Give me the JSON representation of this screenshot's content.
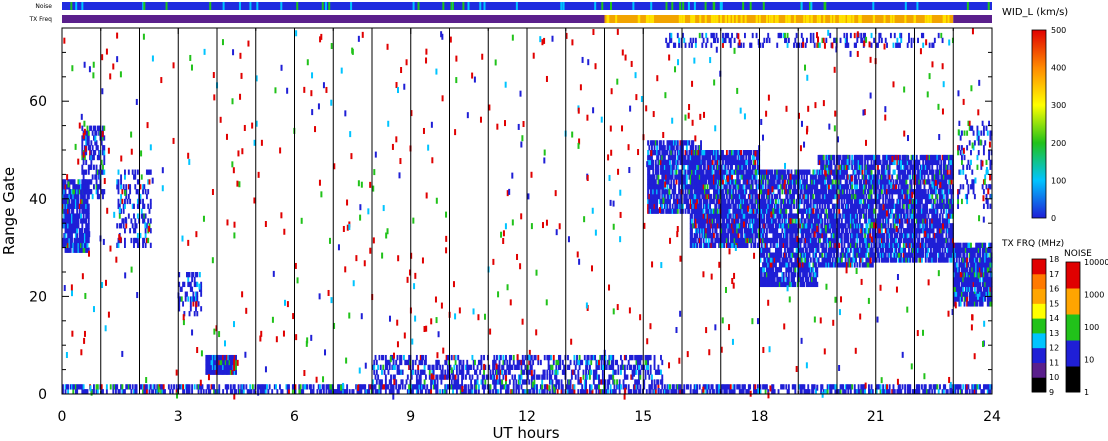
{
  "chart_data": {
    "type": "heatmap",
    "xlabel": "UT hours",
    "ylabel": "Range Gate",
    "xlim": [
      0,
      24
    ],
    "ylim": [
      0,
      75
    ],
    "x_ticks": [
      "0",
      "3",
      "6",
      "9",
      "12",
      "15",
      "18",
      "21",
      "24"
    ],
    "y_ticks": [
      "0",
      "20",
      "40",
      "60"
    ],
    "top_strips": {
      "noise_label": "Noise",
      "txfreq_label": "TX Freq",
      "txfreq_segments": [
        {
          "from": 0,
          "to": 14,
          "color": "#5a1f8c"
        },
        {
          "from": 14,
          "to": 23,
          "color": "#f2a400"
        },
        {
          "from": 23,
          "to": 24,
          "color": "#5a1f8c"
        }
      ],
      "noise_color": "#1f2bdf"
    },
    "colorbars": [
      {
        "title": "WID_L (km/s)",
        "ticks": [
          "0",
          "100",
          "200",
          "300",
          "400",
          "500"
        ],
        "colors": [
          "#1f1fd6",
          "#00c4ff",
          "#21c21a",
          "#ffff00",
          "#ff8a00",
          "#e00000"
        ]
      },
      {
        "title": "TX FRQ (MHz)",
        "ticks": [
          "9",
          "10",
          "11",
          "12",
          "13",
          "14",
          "15",
          "16",
          "17",
          "18"
        ],
        "colors": [
          "#000000",
          "#5a1f8c",
          "#1f1fd6",
          "#00c4ff",
          "#21c21a",
          "#ffff00",
          "#ffa500",
          "#ff7a00",
          "#e00000"
        ]
      },
      {
        "title": "NOISE",
        "ticks": [
          "1",
          "10",
          "100",
          "1000",
          "10000"
        ],
        "colors": [
          "#000000",
          "#1f1fd6",
          "#21c21a",
          "#ffa500",
          "#e00000"
        ]
      }
    ],
    "echo_regions": [
      {
        "t": [
          0.0,
          0.7
        ],
        "g": [
          29,
          44
        ],
        "density": 0.85
      },
      {
        "t": [
          0.5,
          1.1
        ],
        "g": [
          40,
          55
        ],
        "density": 0.5
      },
      {
        "t": [
          1.4,
          2.3
        ],
        "g": [
          30,
          46
        ],
        "density": 0.3
      },
      {
        "t": [
          3.0,
          3.6
        ],
        "g": [
          16,
          25
        ],
        "density": 0.4
      },
      {
        "t": [
          3.7,
          4.5
        ],
        "g": [
          4,
          8
        ],
        "density": 1.0
      },
      {
        "t": [
          0.0,
          24.0
        ],
        "g": [
          0,
          2
        ],
        "density": 0.6
      },
      {
        "t": [
          8.0,
          15.5
        ],
        "g": [
          2,
          8
        ],
        "density": 0.45
      },
      {
        "t": [
          15.1,
          16.5
        ],
        "g": [
          37,
          52
        ],
        "density": 0.75
      },
      {
        "t": [
          16.2,
          18.0
        ],
        "g": [
          30,
          50
        ],
        "density": 0.85
      },
      {
        "t": [
          18.0,
          19.5
        ],
        "g": [
          22,
          46
        ],
        "density": 0.8
      },
      {
        "t": [
          19.5,
          21.0
        ],
        "g": [
          26,
          49
        ],
        "density": 0.8
      },
      {
        "t": [
          21.0,
          23.0
        ],
        "g": [
          27,
          49
        ],
        "density": 0.8
      },
      {
        "t": [
          23.0,
          24.0
        ],
        "g": [
          18,
          31
        ],
        "density": 0.85
      },
      {
        "t": [
          23.1,
          24.0
        ],
        "g": [
          38,
          56
        ],
        "density": 0.2
      },
      {
        "t": [
          15.5,
          23.0
        ],
        "g": [
          71,
          74
        ],
        "density": 0.25
      }
    ]
  }
}
